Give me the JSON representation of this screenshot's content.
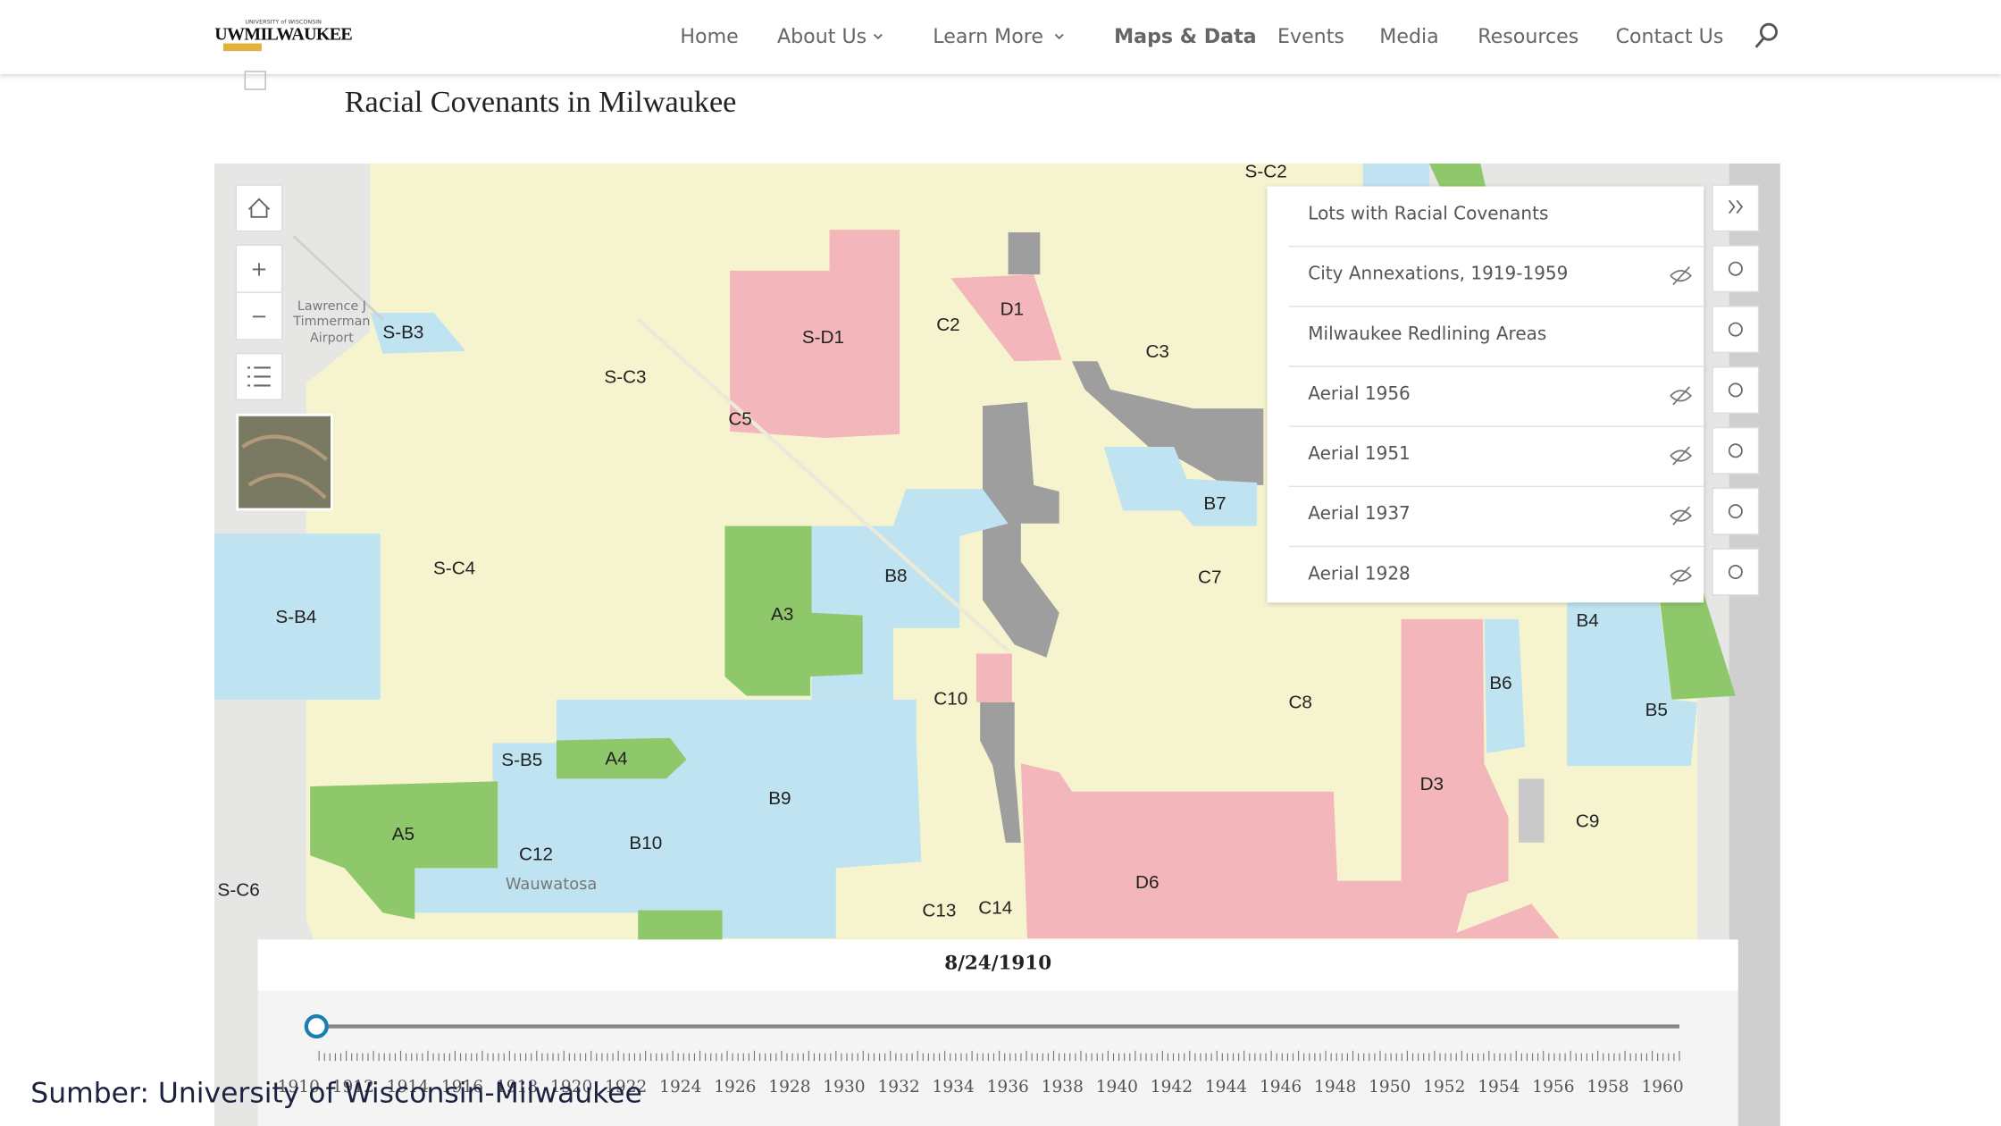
{
  "header": {
    "logo_small": "UNIVERSITY of WISCONSIN",
    "logo": "UWMILWAUKEE",
    "nav": [
      "Home",
      "About Us",
      "Learn More",
      "Maps & Data",
      "Events",
      "Media",
      "Resources",
      "Contact Us"
    ]
  },
  "title": "Racial Covenants in Milwaukee",
  "map": {
    "labels": [
      "S-C2",
      "S-B3",
      "S-C3",
      "S-D1",
      "C2",
      "D1",
      "C3",
      "C5",
      "B7",
      "S-C4",
      "S-B4",
      "A3",
      "B8",
      "C7",
      "B4",
      "B6",
      "B5",
      "C10",
      "C8",
      "S-B5",
      "A4",
      "B9",
      "D3",
      "C9",
      "A5",
      "C12",
      "B10",
      "S-C6",
      "D6",
      "C13",
      "C14"
    ],
    "places": [
      "Lawrence J",
      "Timmerman",
      "Airport",
      "Wauwatosa"
    ],
    "layers": [
      "Lots with Racial Covenants",
      "City Annexations, 1919-1959",
      "Milwaukee Redlining Areas",
      "Aerial 1956",
      "Aerial 1951",
      "Aerial 1937",
      "Aerial 1928"
    ]
  },
  "timeline": {
    "date": "8/24/1910",
    "years": [
      1910,
      1912,
      1914,
      1916,
      1918,
      1920,
      1922,
      1924,
      1926,
      1928,
      1930,
      1932,
      1934,
      1936,
      1938,
      1940,
      1942,
      1944,
      1946,
      1948,
      1950,
      1952,
      1954,
      1956,
      1958,
      1960
    ]
  },
  "caption": "Sumber: University of Wisconsin-Milwaukee"
}
